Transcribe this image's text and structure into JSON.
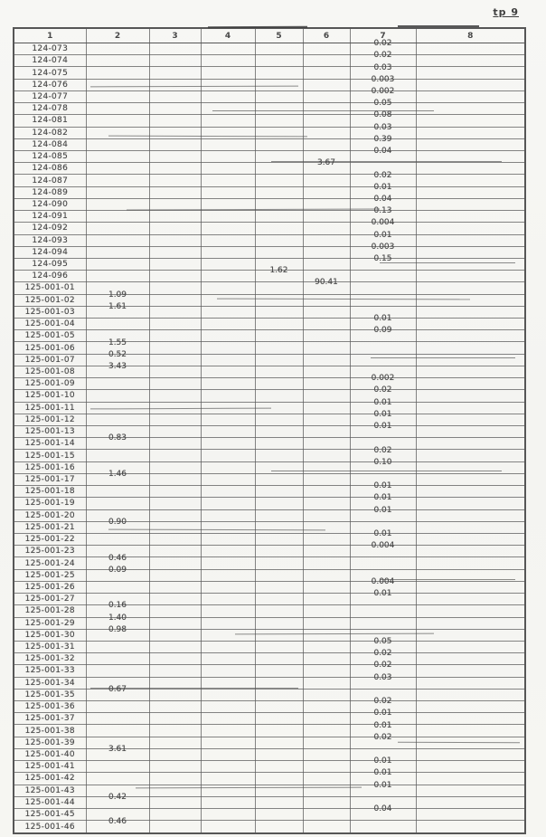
{
  "page": {
    "corner_label": "tp 9"
  },
  "table": {
    "columns": [
      "1",
      "2",
      "3",
      "4",
      "5",
      "6",
      "7",
      "8"
    ],
    "rows": [
      {
        "label": "124-073",
        "col": 7,
        "value": "0.02"
      },
      {
        "label": "124-074",
        "col": 7,
        "value": "0.02"
      },
      {
        "label": "124-075",
        "col": 7,
        "value": "0.03"
      },
      {
        "label": "124-076",
        "col": 7,
        "value": "0.003"
      },
      {
        "label": "124-077",
        "col": 7,
        "value": "0.002"
      },
      {
        "label": "124-078",
        "col": 7,
        "value": "0.05"
      },
      {
        "label": "124-081",
        "col": 7,
        "value": "0.08"
      },
      {
        "label": "124-082",
        "col": 7,
        "value": "0.03"
      },
      {
        "label": "124-084",
        "col": 7,
        "value": "0.39"
      },
      {
        "label": "124-085",
        "col": 7,
        "value": "0.04"
      },
      {
        "label": "124-086",
        "col": 6,
        "value": "3.67"
      },
      {
        "label": "124-087",
        "col": 7,
        "value": "0.02"
      },
      {
        "label": "124-089",
        "col": 7,
        "value": "0.01"
      },
      {
        "label": "124-090",
        "col": 7,
        "value": "0.04"
      },
      {
        "label": "124-091",
        "col": 7,
        "value": "0.13"
      },
      {
        "label": "124-092",
        "col": 7,
        "value": "0.004"
      },
      {
        "label": "124-093",
        "col": 7,
        "value": "0.01"
      },
      {
        "label": "124-094",
        "col": 7,
        "value": "0.003"
      },
      {
        "label": "124-095",
        "col": 7,
        "value": "0.15"
      },
      {
        "label": "124-096",
        "col": 5,
        "value": "1.62"
      },
      {
        "label": "125-001-01",
        "col": 6,
        "value": "90.41"
      },
      {
        "label": "125-001-02",
        "col": 2,
        "value": "1.09"
      },
      {
        "label": "125-001-03",
        "col": 2,
        "value": "1.61"
      },
      {
        "label": "125-001-04",
        "col": 7,
        "value": "0.01"
      },
      {
        "label": "125-001-05",
        "col": 7,
        "value": "0.09"
      },
      {
        "label": "125-001-06",
        "col": 2,
        "value": "1.55"
      },
      {
        "label": "125-001-07",
        "col": 2,
        "value": "0.52"
      },
      {
        "label": "125-001-08",
        "col": 2,
        "value": "3.43"
      },
      {
        "label": "125-001-09",
        "col": 7,
        "value": "0.002"
      },
      {
        "label": "125-001-10",
        "col": 7,
        "value": "0.02"
      },
      {
        "label": "125-001-11",
        "col": 7,
        "value": "0.01"
      },
      {
        "label": "125-001-12",
        "col": 7,
        "value": "0.01"
      },
      {
        "label": "125-001-13",
        "col": 7,
        "value": "0.01"
      },
      {
        "label": "125-001-14",
        "col": 2,
        "value": "0.83"
      },
      {
        "label": "125-001-15",
        "col": 7,
        "value": "0.02"
      },
      {
        "label": "125-001-16",
        "col": 7,
        "value": "0.10"
      },
      {
        "label": "125-001-17",
        "col": 2,
        "value": "1.46"
      },
      {
        "label": "125-001-18",
        "col": 7,
        "value": "0.01"
      },
      {
        "label": "125-001-19",
        "col": 7,
        "value": "0.01"
      },
      {
        "label": "125-001-20",
        "col": 7,
        "value": "0.01"
      },
      {
        "label": "125-001-21",
        "col": 2,
        "value": "0.90"
      },
      {
        "label": "125-001-22",
        "col": 7,
        "value": "0.01"
      },
      {
        "label": "125-001-23",
        "col": 7,
        "value": "0.004"
      },
      {
        "label": "125-001-24",
        "col": 2,
        "value": "0.46"
      },
      {
        "label": "125-001-25",
        "col": 2,
        "value": "0.09"
      },
      {
        "label": "125-001-26",
        "col": 7,
        "value": "0.004"
      },
      {
        "label": "125-001-27",
        "col": 7,
        "value": "0.01"
      },
      {
        "label": "125-001-28",
        "col": 2,
        "value": "0.16"
      },
      {
        "label": "125-001-29",
        "col": 2,
        "value": "1.40"
      },
      {
        "label": "125-001-30",
        "col": 2,
        "value": "0.98"
      },
      {
        "label": "125-001-31",
        "col": 7,
        "value": "0.05"
      },
      {
        "label": "125-001-32",
        "col": 7,
        "value": "0.02"
      },
      {
        "label": "125-001-33",
        "col": 7,
        "value": "0.02"
      },
      {
        "label": "125-001-34",
        "col": 7,
        "value": "0.03"
      },
      {
        "label": "125-001-35",
        "col": 2,
        "value": "0.67"
      },
      {
        "label": "125-001-36",
        "col": 7,
        "value": "0.02"
      },
      {
        "label": "125-001-37",
        "col": 7,
        "value": "0.01"
      },
      {
        "label": "125-001-38",
        "col": 7,
        "value": "0.01"
      },
      {
        "label": "125-001-39",
        "col": 7,
        "value": "0.02"
      },
      {
        "label": "125-001-40",
        "col": 2,
        "value": "3.61"
      },
      {
        "label": "125-001-41",
        "col": 7,
        "value": "0.01"
      },
      {
        "label": "125-001-42",
        "col": 7,
        "value": "0.01"
      },
      {
        "label": "125-001-43",
        "col": 7,
        "value": "0.01"
      },
      {
        "label": "125-001-44",
        "col": 2,
        "value": "0.42"
      },
      {
        "label": "125-001-45",
        "col": 7,
        "value": "0.04"
      },
      {
        "label": "125-001-46",
        "col": 2,
        "value": "0.46"
      }
    ]
  },
  "colors": {
    "ink": "#4c4c4c",
    "grid": "#5c5c5c",
    "paper": "#f6f6f3"
  }
}
